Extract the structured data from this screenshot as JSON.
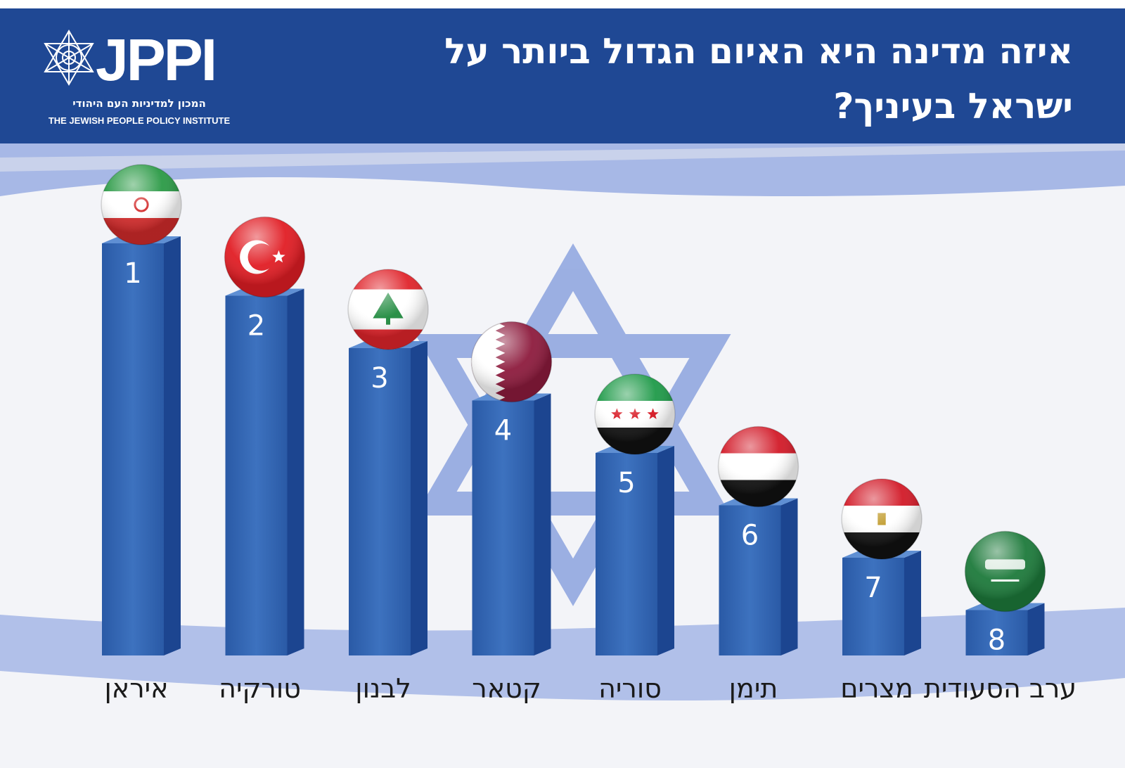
{
  "header": {
    "logo": {
      "wordmark": "JPPI",
      "hebrew_name": "המכון למדיניות העם היהודי",
      "english_name": "THE JEWISH PEOPLE POLICY INSTITUTE"
    },
    "title_line1": "איזה מדינה היא האיום הגדול ביותר על",
    "title_line2": "ישראל בעיניך?"
  },
  "colors": {
    "header_blue": "#1f4894",
    "bar_front": "#3566b0",
    "bar_side": "#1c4590",
    "bar_top": "#5f8fd3",
    "flag_blue": "#6f8ed9"
  },
  "chart_data": {
    "type": "bar",
    "categories": [
      "איראן",
      "טורקיה",
      "לבנון",
      "קטאר",
      "סוריה",
      "תימן",
      "מצרים",
      "ערב הסעודית"
    ],
    "series": [
      {
        "values": [
          1,
          2,
          3,
          4,
          5,
          6,
          7,
          8
        ]
      }
    ],
    "rank_labels": [
      "1",
      "2",
      "3",
      "4",
      "5",
      "6",
      "7",
      "8"
    ],
    "flag_icons": [
      "iran-flag-icon",
      "turkey-flag-icon",
      "lebanon-flag-icon",
      "qatar-flag-icon",
      "syria-flag-icon",
      "yemen-flag-icon",
      "egypt-flag-icon",
      "saudi-arabia-flag-icon"
    ],
    "xlabel": "",
    "ylabel": "",
    "grid": false,
    "legend": "none"
  }
}
